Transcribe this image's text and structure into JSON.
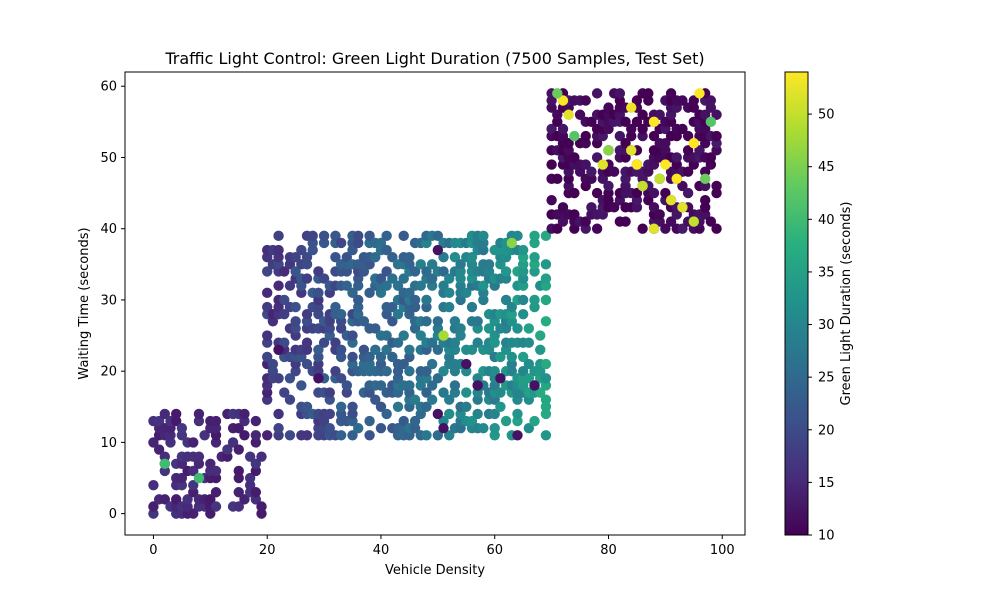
{
  "chart_data": {
    "type": "scatter",
    "title": "Traffic Light Control: Green Light Duration (7500 Samples, Test Set)",
    "xlabel": "Vehicle Density",
    "ylabel": "Waiting Time (seconds)",
    "xlim": [
      -5,
      104
    ],
    "ylim": [
      -3,
      62
    ],
    "xticks": [
      0,
      20,
      40,
      60,
      80,
      100
    ],
    "yticks": [
      0,
      10,
      20,
      30,
      40,
      50,
      60
    ],
    "grid": false,
    "legend": "none",
    "colormap": "viridis",
    "colorbar": {
      "label": "Green Light Duration (seconds)",
      "min": 10,
      "max": 54,
      "ticks": [
        10,
        15,
        20,
        25,
        30,
        35,
        40,
        45,
        50
      ]
    },
    "clusters": [
      {
        "xrange": [
          0,
          19
        ],
        "yrange": [
          0,
          14
        ],
        "base_value": 15
      },
      {
        "xrange": [
          20,
          69
        ],
        "yrange": [
          11,
          39
        ],
        "base_value": 28
      },
      {
        "xrange": [
          70,
          99
        ],
        "yrange": [
          40,
          59
        ],
        "base_value": 11
      }
    ],
    "points": [
      {
        "x": 2,
        "y": 7,
        "value": 40
      },
      {
        "x": 8,
        "y": 5,
        "value": 40
      },
      {
        "x": 22,
        "y": 23,
        "value": 12
      },
      {
        "x": 29,
        "y": 19,
        "value": 12
      },
      {
        "x": 50,
        "y": 37,
        "value": 12
      },
      {
        "x": 51,
        "y": 25,
        "value": 48
      },
      {
        "x": 63,
        "y": 38,
        "value": 46
      },
      {
        "x": 50,
        "y": 14,
        "value": 12
      },
      {
        "x": 51,
        "y": 12,
        "value": 12
      },
      {
        "x": 55,
        "y": 21,
        "value": 12
      },
      {
        "x": 57,
        "y": 18,
        "value": 12
      },
      {
        "x": 61,
        "y": 19,
        "value": 12
      },
      {
        "x": 64,
        "y": 11,
        "value": 12
      },
      {
        "x": 67,
        "y": 18,
        "value": 12
      },
      {
        "x": 72,
        "y": 58,
        "value": 54
      },
      {
        "x": 71,
        "y": 59,
        "value": 44
      },
      {
        "x": 73,
        "y": 56,
        "value": 52
      },
      {
        "x": 74,
        "y": 53,
        "value": 42
      },
      {
        "x": 79,
        "y": 49,
        "value": 52
      },
      {
        "x": 80,
        "y": 51,
        "value": 46
      },
      {
        "x": 84,
        "y": 57,
        "value": 53
      },
      {
        "x": 84,
        "y": 51,
        "value": 52
      },
      {
        "x": 85,
        "y": 49,
        "value": 54
      },
      {
        "x": 86,
        "y": 46,
        "value": 50
      },
      {
        "x": 88,
        "y": 55,
        "value": 54
      },
      {
        "x": 88,
        "y": 40,
        "value": 52
      },
      {
        "x": 89,
        "y": 47,
        "value": 50
      },
      {
        "x": 90,
        "y": 49,
        "value": 54
      },
      {
        "x": 91,
        "y": 44,
        "value": 52
      },
      {
        "x": 92,
        "y": 47,
        "value": 54
      },
      {
        "x": 93,
        "y": 43,
        "value": 52
      },
      {
        "x": 95,
        "y": 52,
        "value": 54
      },
      {
        "x": 95,
        "y": 41,
        "value": 50
      },
      {
        "x": 96,
        "y": 59,
        "value": 54
      },
      {
        "x": 97,
        "y": 47,
        "value": 44
      },
      {
        "x": 98,
        "y": 55,
        "value": 42
      }
    ]
  }
}
